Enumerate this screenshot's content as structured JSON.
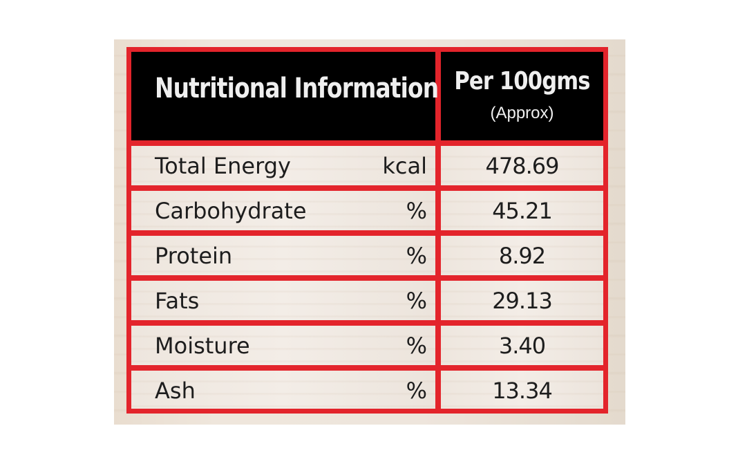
{
  "table": {
    "header": {
      "title": "Nutritional Information",
      "per_label": "Per 100gms",
      "approx_label": "(Approx)"
    },
    "rows": [
      {
        "nutrient": "Total Energy",
        "unit": "kcal",
        "value": "478.69"
      },
      {
        "nutrient": "Carbohydrate",
        "unit": "%",
        "value": "45.21"
      },
      {
        "nutrient": "Protein",
        "unit": "%",
        "value": "8.92"
      },
      {
        "nutrient": "Fats",
        "unit": "%",
        "value": "29.13"
      },
      {
        "nutrient": "Moisture",
        "unit": "%",
        "value": "3.40"
      },
      {
        "nutrient": "Ash",
        "unit": "%",
        "value": "13.34"
      }
    ]
  },
  "colors": {
    "border": "#e3242b",
    "header_background": "#000000",
    "header_text": "#efefef",
    "body_text": "#1d1d1d"
  }
}
